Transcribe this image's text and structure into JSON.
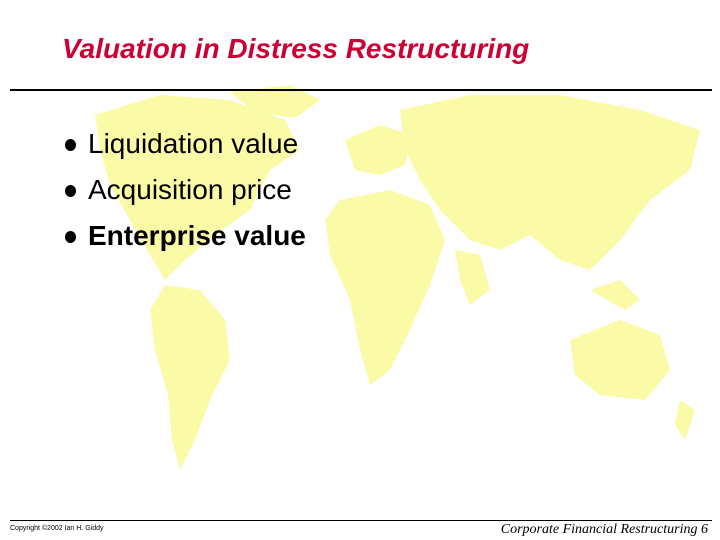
{
  "header": {
    "title": "Valuation in Distress Restructuring"
  },
  "bullets": [
    "Liquidation value",
    "Acquisition price",
    "Enterprise value"
  ],
  "footer": {
    "copyright": "Copyright ©2002 Ian H. Giddy",
    "page": "Corporate Financial Restructuring 6"
  }
}
